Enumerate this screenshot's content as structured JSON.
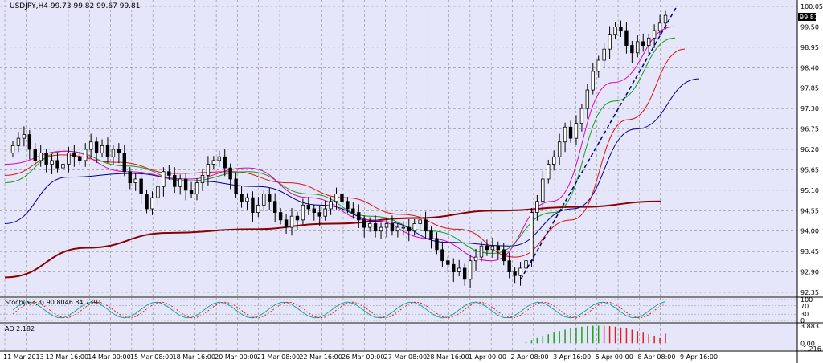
{
  "symbol_label": "USDJPY,H4",
  "ohlc_label": "99.73 99.82 99.67 99.81",
  "current_price_label": "99.81",
  "stoch_label": "Stoch(5,3,3) 90.8046 84.7391",
  "ao_label": "AO 2.182",
  "colors": {
    "background": "#e6e6fa",
    "grid": "#8a8a8a",
    "candle": "#000000",
    "ma_red_thick": "#8b0000",
    "ma_blue": "#00008b",
    "ma_red": "#e01010",
    "ma_green": "#10a010",
    "ma_magenta": "#e000c0",
    "trendline": "#000080",
    "stoch_main": "#20a0a0",
    "stoch_signal": "#e02020",
    "ao_up": "#20a020",
    "ao_down": "#e02020"
  },
  "chart_data": {
    "type": "candlestick",
    "symbol": "USDJPY",
    "timeframe": "H4",
    "ohlc_last": {
      "open": 99.73,
      "high": 99.82,
      "low": 99.67,
      "close": 99.81
    },
    "current_price": 99.81,
    "y_ticks": [
      "100.05",
      "99.50",
      "98.95",
      "98.40",
      "97.85",
      "97.30",
      "96.75",
      "96.20",
      "95.65",
      "95.10",
      "94.55",
      "94.00",
      "93.45",
      "92.90",
      "92.35"
    ],
    "ylim": [
      92.35,
      100.05
    ],
    "x_ticks": [
      "11 Mar 2013",
      "12 Mar 16:00",
      "14 Mar 00:00",
      "15 Mar 08:00",
      "18 Mar 16:00",
      "20 Mar 00:00",
      "21 Mar 08:00",
      "22 Mar 16:00",
      "26 Mar 00:00",
      "27 Mar 08:00",
      "28 Mar 16:00",
      "1 Apr 00:00",
      "2 Apr 08:00",
      "3 Apr 16:00",
      "5 Apr 00:00",
      "8 Apr 08:00",
      "9 Apr 16:00"
    ],
    "closes": [
      96.3,
      96.5,
      96.6,
      96.2,
      95.9,
      96.1,
      95.8,
      95.9,
      95.7,
      95.8,
      96.1,
      96.0,
      95.9,
      96.2,
      96.4,
      96.1,
      96.3,
      96.0,
      96.2,
      96.1,
      95.6,
      95.3,
      95.4,
      95.0,
      94.6,
      94.9,
      95.2,
      95.6,
      95.5,
      95.2,
      95.4,
      95.1,
      95.0,
      95.3,
      95.5,
      95.8,
      95.9,
      96.0,
      95.7,
      95.4,
      95.0,
      94.8,
      94.9,
      94.5,
      94.7,
      95.0,
      94.8,
      94.5,
      94.3,
      94.1,
      94.4,
      94.3,
      94.7,
      94.6,
      94.5,
      94.4,
      94.6,
      94.8,
      95.0,
      94.8,
      94.6,
      94.5,
      94.3,
      94.1,
      94.2,
      94.0,
      94.1,
      94.2,
      94.0,
      94.1,
      94.1,
      94.0,
      94.2,
      94.3,
      94.0,
      93.8,
      93.5,
      93.2,
      93.1,
      92.9,
      93.0,
      92.7,
      93.2,
      93.3,
      93.6,
      93.5,
      93.6,
      93.5,
      93.2,
      92.9,
      92.8,
      93.0,
      93.2,
      94.5,
      94.8,
      95.4,
      95.8,
      96.0,
      96.4,
      96.8,
      96.5,
      96.9,
      97.3,
      97.8,
      98.3,
      98.6,
      98.9,
      99.3,
      99.5,
      99.4,
      99.0,
      98.8,
      99.1,
      99.0,
      99.2,
      99.4,
      99.6,
      99.81
    ],
    "moving_averages": [
      {
        "color": "dark red",
        "values": [
          92.75,
          93.55,
          93.95,
          94.05,
          94.2,
          94.35,
          94.55,
          94.65,
          94.8
        ]
      },
      {
        "color": "blue",
        "values": [
          94.2,
          95.45,
          95.55,
          95.35,
          95.2,
          94.7,
          94.25,
          93.7,
          93.6,
          94.6,
          96.75,
          98.1
        ]
      },
      {
        "color": "red",
        "values": [
          95.5,
          96.05,
          95.85,
          95.55,
          95.6,
          95.3,
          94.9,
          94.45,
          94.05,
          93.3,
          94.3,
          97.0,
          98.9
        ]
      },
      {
        "color": "green",
        "values": [
          95.3,
          96.15,
          95.75,
          95.35,
          95.6,
          95.0,
          94.4,
          94.0,
          93.4,
          94.5,
          97.5,
          99.2
        ]
      },
      {
        "color": "magenta",
        "values": [
          95.8,
          96.15,
          95.6,
          95.4,
          95.7,
          94.9,
          94.3,
          93.8,
          93.2,
          94.8,
          98.0,
          99.5
        ]
      }
    ],
    "trendline": {
      "from": 92.7,
      "to": 100.05
    },
    "stochastic": {
      "main": 90.8046,
      "signal": 84.7391,
      "levels": [
        100,
        70,
        30,
        0
      ]
    },
    "ao": {
      "value": 2.182,
      "ylim": [
        -1.216,
        3.883
      ]
    },
    "ao_ticks": [
      "3.883",
      "0.00",
      "-1.216"
    ]
  }
}
